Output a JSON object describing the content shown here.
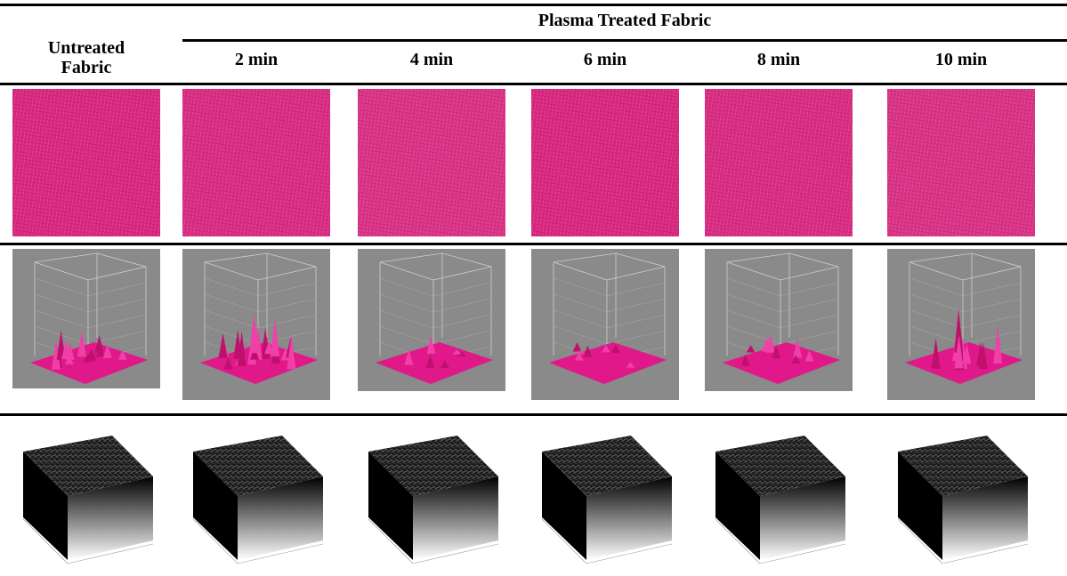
{
  "header": {
    "group_title": "Plasma Treated Fabric",
    "untreated": "Untreated Fabric",
    "columns": [
      "2 min",
      "4 min",
      "6 min",
      "8 min",
      "10 min"
    ]
  }
}
